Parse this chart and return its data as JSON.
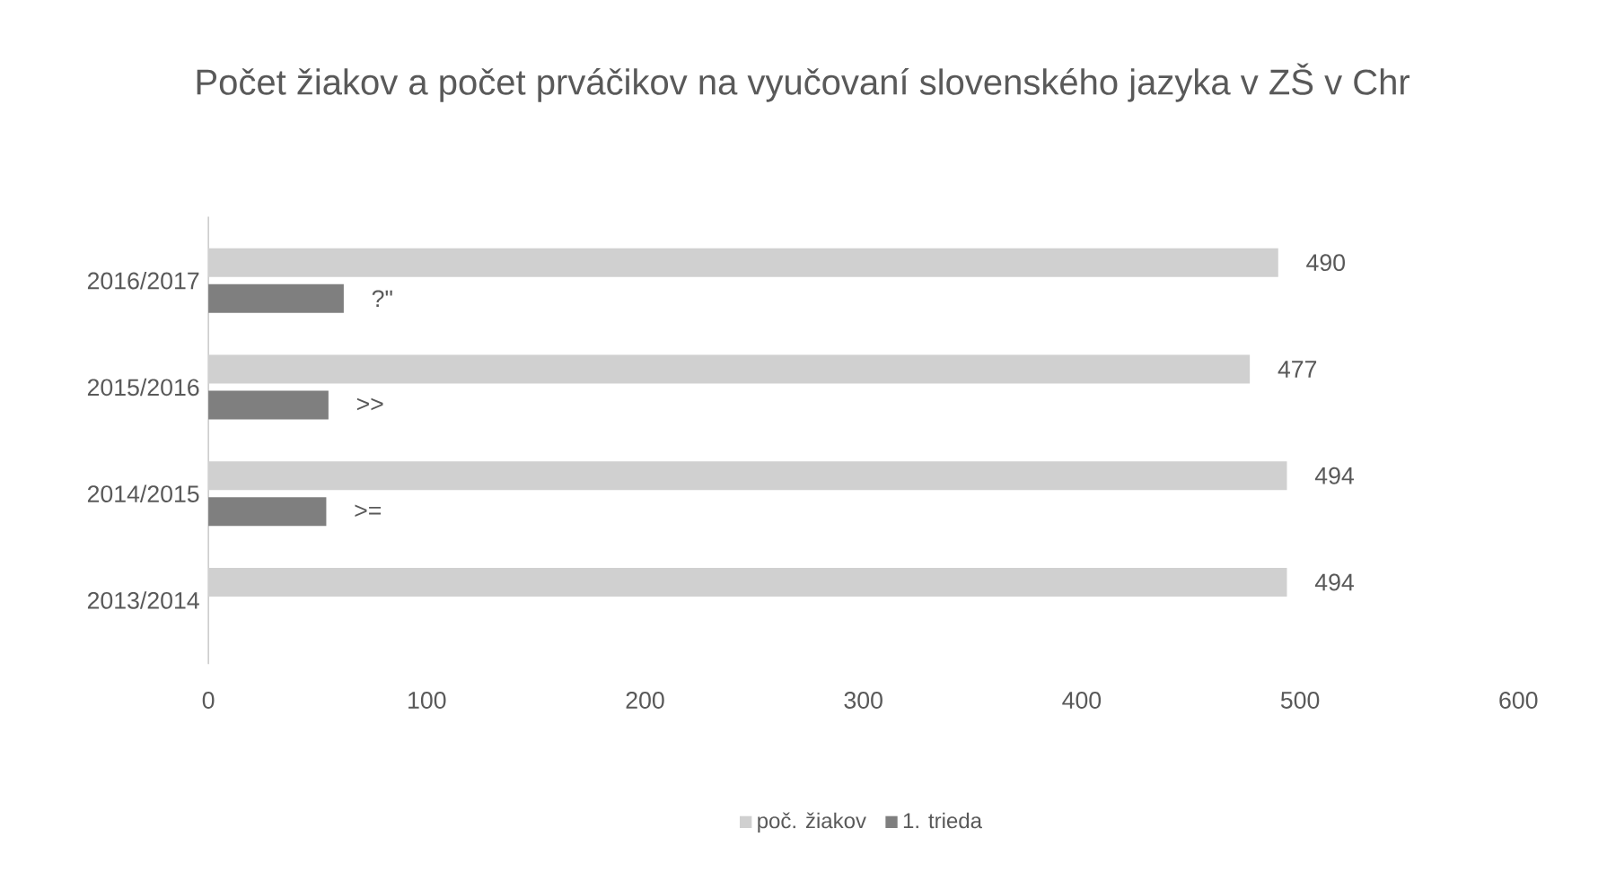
{
  "chart_data": {
    "type": "bar",
    "orientation": "horizontal",
    "title": "Počet žiakov a počet prváčikov na vyučovaní slovenského jazyka v ZŠ v Chr",
    "categories": [
      "2016/2017",
      "2015/2016",
      "2014/2015",
      "2013/2014"
    ],
    "series": [
      {
        "name": "poč. žiakov",
        "color": "#d0d0d0",
        "values": [
          490,
          477,
          494,
          494
        ],
        "value_labels": [
          "490",
          "477",
          "494",
          "494"
        ]
      },
      {
        "name": "1. trieda",
        "color": "#7f7f7f",
        "values": [
          62,
          55,
          54,
          null
        ],
        "value_labels": [
          "?\"",
          ">>",
          ">=",
          null
        ]
      }
    ],
    "xlim": [
      0,
      600
    ],
    "xticks": [
      0,
      100,
      200,
      300,
      400,
      500,
      600
    ],
    "legend": "bottom"
  }
}
